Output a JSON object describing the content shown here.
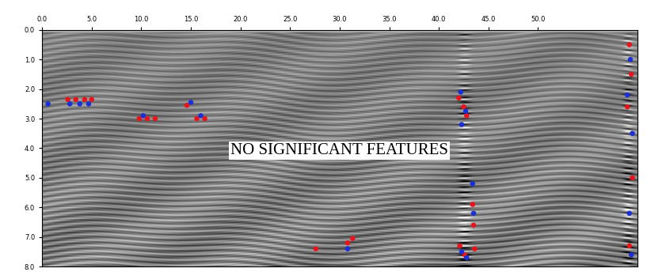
{
  "chart_data": {
    "type": "radargram",
    "annotations": [
      "NO SIGNIFICANT FEATURES"
    ],
    "xlim": [
      0,
      60
    ],
    "xticks": [
      {
        "value": 0,
        "label": "0.0"
      },
      {
        "value": 5,
        "label": "5.0"
      },
      {
        "value": 10,
        "label": "10.0"
      },
      {
        "value": 15,
        "label": "15.0"
      },
      {
        "value": 20,
        "label": "20.0"
      },
      {
        "value": 25,
        "label": "25.0"
      },
      {
        "value": 30,
        "label": "30.0"
      },
      {
        "value": 35,
        "label": "35.0"
      },
      {
        "value": 40,
        "label": "40.0"
      },
      {
        "value": 45,
        "label": "45.0"
      },
      {
        "value": 50,
        "label": "50.0"
      }
    ],
    "ylim": [
      8,
      0
    ],
    "yticks": [
      {
        "value": 0,
        "label": "0.0"
      },
      {
        "value": 1,
        "label": "1.0"
      },
      {
        "value": 2,
        "label": "2.0"
      },
      {
        "value": 3,
        "label": "3.0"
      },
      {
        "value": 4,
        "label": "4.0"
      },
      {
        "value": 5,
        "label": "5.0"
      },
      {
        "value": 6,
        "label": "6.0"
      },
      {
        "value": 7,
        "label": "7.0"
      },
      {
        "value": 8,
        "label": "8.0"
      }
    ],
    "series": [
      {
        "color": "#e8141c",
        "marker": "o",
        "x": [
          2.6,
          3.4,
          4.3,
          5.0,
          9.8,
          10.6,
          11.4,
          14.6,
          15.6,
          16.4,
          42.0,
          42.5,
          42.8,
          43.4,
          43.5,
          43.6,
          42.1,
          42.6,
          27.6,
          30.8,
          31.3,
          59.2,
          59.4,
          59.0,
          59.5,
          59.2
        ],
        "y": [
          2.35,
          2.35,
          2.35,
          2.35,
          3.0,
          3.0,
          3.0,
          2.55,
          3.0,
          3.0,
          2.3,
          2.6,
          2.9,
          5.9,
          6.6,
          7.4,
          7.3,
          7.6,
          7.4,
          7.2,
          7.05,
          0.5,
          1.5,
          2.6,
          5.0,
          7.3
        ]
      },
      {
        "color": "#1a2fd6",
        "marker": "o",
        "x": [
          0.6,
          2.8,
          3.8,
          4.7,
          10.2,
          15.0,
          16.0,
          42.2,
          42.7,
          42.3,
          43.4,
          43.5,
          42.3,
          42.8,
          30.8,
          59.3,
          59.0,
          59.5,
          59.2,
          59.4
        ],
        "y": [
          2.5,
          2.5,
          2.5,
          2.5,
          2.9,
          2.45,
          2.9,
          2.1,
          2.75,
          3.2,
          5.2,
          6.2,
          7.5,
          7.7,
          7.4,
          1.0,
          2.2,
          3.5,
          6.2,
          7.6
        ]
      }
    ]
  }
}
